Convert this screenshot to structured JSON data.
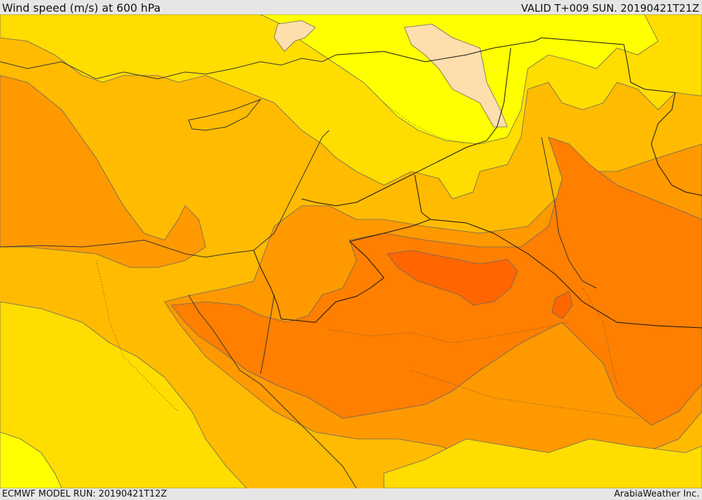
{
  "header": {
    "title": "Wind speed (m/s) at 600 hPa",
    "valid": "VALID T+009 SUN. 20190421T21Z"
  },
  "footer": {
    "model_run": "ECMWF MODEL RUN: 20190421T12Z",
    "credit": "ArabiaWeather Inc."
  },
  "map": {
    "field": "wind speed",
    "level": "600 hPa",
    "colors": {
      "band_lowest": "#ffff00",
      "band_low": "#ffdd00",
      "band_mid": "#ffbb00",
      "band_high": "#ff9900",
      "band_higher": "#ff7f00",
      "band_peak": "#ff6600",
      "calm_patch": "#ffdead",
      "coastline": "#333333",
      "border": "#111111"
    }
  }
}
